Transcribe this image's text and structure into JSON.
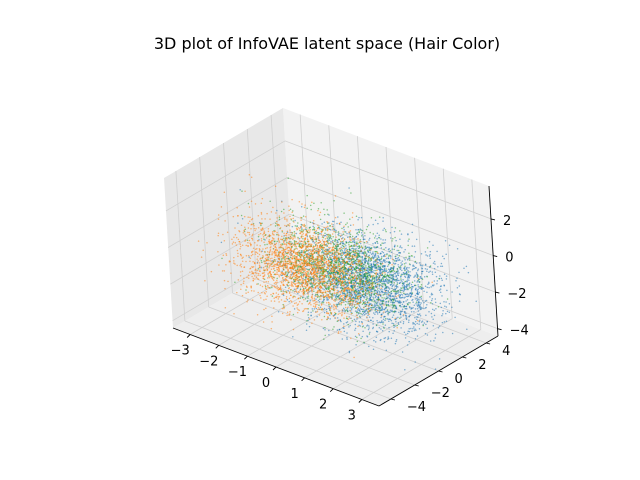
{
  "chart_data": {
    "type": "scatter",
    "projection": "3d",
    "title": "3D plot of InfoVAE latent space (Hair Color)",
    "xlabel": "",
    "ylabel": "",
    "zlabel": "",
    "x_ticks": [
      "−3",
      "−2",
      "−1",
      "0",
      "1",
      "2",
      "3"
    ],
    "y_ticks": [
      "−4",
      "−2",
      "0",
      "2",
      "4"
    ],
    "z_ticks": [
      "−4",
      "−2",
      "0",
      "2"
    ],
    "xlim": [
      -3.6,
      3.6
    ],
    "ylim": [
      -5.0,
      5.0
    ],
    "zlim": [
      -4.4,
      3.8
    ],
    "grid": true,
    "legend": false,
    "pane_color": "#f2f2f2",
    "grid_color": "#d0d0d0",
    "series": [
      {
        "color": "#1f77b4",
        "center": [
          1.2,
          0.2,
          -1.0
        ],
        "spread": [
          1.2,
          1.3,
          1.0
        ],
        "point_count": 2600
      },
      {
        "color": "#2ca02c",
        "center": [
          0.2,
          0.1,
          -0.8
        ],
        "spread": [
          1.1,
          1.2,
          1.0
        ],
        "point_count": 1400
      },
      {
        "color": "#ff7f0e",
        "center": [
          -0.8,
          -0.3,
          -1.2
        ],
        "spread": [
          1.1,
          1.2,
          1.0
        ],
        "point_count": 2200
      }
    ]
  }
}
